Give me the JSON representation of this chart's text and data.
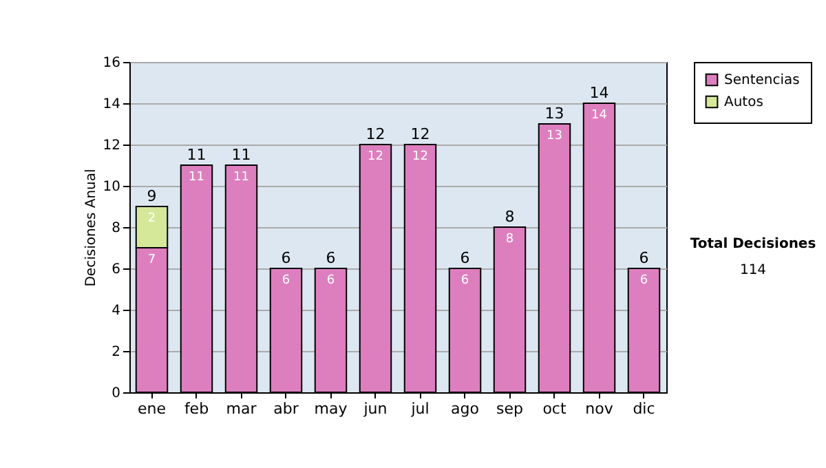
{
  "chart_data": {
    "type": "bar",
    "stacked": true,
    "categories": [
      "ene",
      "feb",
      "mar",
      "abr",
      "may",
      "jun",
      "jul",
      "ago",
      "sep",
      "oct",
      "nov",
      "dic"
    ],
    "series": [
      {
        "name": "Sentencias",
        "color": "#dd7fbe",
        "values": [
          7,
          11,
          11,
          6,
          6,
          12,
          12,
          6,
          8,
          13,
          14,
          6
        ]
      },
      {
        "name": "Autos",
        "color": "#d5e89a",
        "values": [
          2,
          null,
          null,
          null,
          null,
          null,
          null,
          null,
          null,
          null,
          null,
          null
        ]
      }
    ],
    "ylabel": "Decisiones Anual",
    "ylim": [
      0,
      16
    ],
    "yticks": [
      0,
      2,
      4,
      6,
      8,
      10,
      12,
      14,
      16
    ],
    "grid": "y",
    "legend": "right",
    "data_labels": true,
    "totals": [
      "9",
      "11",
      "11",
      "6",
      "6",
      "12",
      "12",
      "6",
      "8",
      "13",
      "14",
      "6"
    ],
    "annotations": [
      "Total Decisiones",
      "114"
    ]
  }
}
